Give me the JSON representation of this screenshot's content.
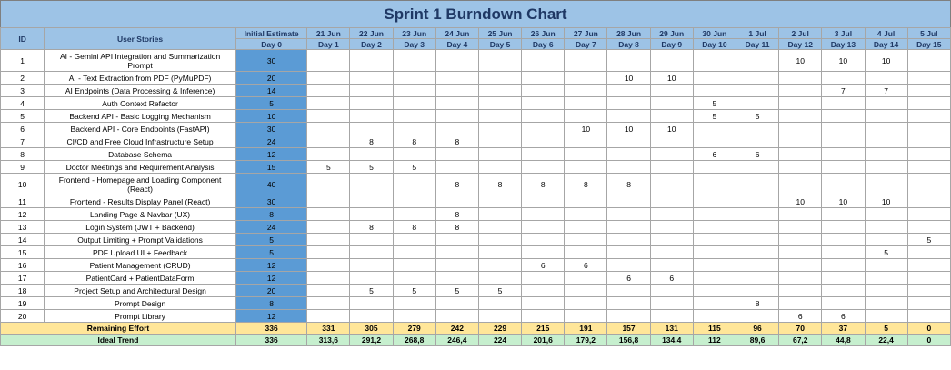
{
  "title": "Sprint 1 Burndown Chart",
  "headers": {
    "id": "ID",
    "stories": "User Stories",
    "estimate": "Initial Estimate",
    "day0": "Day 0"
  },
  "dates": [
    "21 Jun",
    "22 Jun",
    "23 Jun",
    "24 Jun",
    "25 Jun",
    "26 Jun",
    "27 Jun",
    "28 Jun",
    "29 Jun",
    "30 Jun",
    "1 Jul",
    "2 Jul",
    "3 Jul",
    "4 Jul",
    "5 Jul"
  ],
  "days": [
    "Day 1",
    "Day 2",
    "Day 3",
    "Day 4",
    "Day 5",
    "Day 6",
    "Day 7",
    "Day 8",
    "Day 9",
    "Day 10",
    "Day 11",
    "Day 12",
    "Day 13",
    "Day 14",
    "Day 15"
  ],
  "rows": [
    {
      "id": "1",
      "story": "AI - Gemini API Integration and Summarization Prompt",
      "est": "30",
      "cells": [
        "",
        "",
        "",
        "",
        "",
        "",
        "",
        "",
        "",
        "",
        "",
        "10",
        "10",
        "10",
        ""
      ]
    },
    {
      "id": "2",
      "story": "AI - Text Extraction from PDF (PyMuPDF)",
      "est": "20",
      "cells": [
        "",
        "",
        "",
        "",
        "",
        "",
        "",
        "10",
        "10",
        "",
        "",
        "",
        "",
        "",
        ""
      ]
    },
    {
      "id": "3",
      "story": "AI Endpoints (Data Processing & Inference)",
      "est": "14",
      "cells": [
        "",
        "",
        "",
        "",
        "",
        "",
        "",
        "",
        "",
        "",
        "",
        "",
        "7",
        "7",
        ""
      ]
    },
    {
      "id": "4",
      "story": "Auth Context Refactor",
      "est": "5",
      "cells": [
        "",
        "",
        "",
        "",
        "",
        "",
        "",
        "",
        "",
        "5",
        "",
        "",
        "",
        "",
        ""
      ]
    },
    {
      "id": "5",
      "story": "Backend API - Basic Logging Mechanism",
      "est": "10",
      "cells": [
        "",
        "",
        "",
        "",
        "",
        "",
        "",
        "",
        "",
        "5",
        "5",
        "",
        "",
        "",
        ""
      ]
    },
    {
      "id": "6",
      "story": "Backend API - Core Endpoints (FastAPI)",
      "est": "30",
      "cells": [
        "",
        "",
        "",
        "",
        "",
        "",
        "10",
        "10",
        "10",
        "",
        "",
        "",
        "",
        "",
        ""
      ]
    },
    {
      "id": "7",
      "story": "CI/CD and Free Cloud Infrastructure Setup",
      "est": "24",
      "cells": [
        "",
        "8",
        "8",
        "8",
        "",
        "",
        "",
        "",
        "",
        "",
        "",
        "",
        "",
        "",
        ""
      ]
    },
    {
      "id": "8",
      "story": "Database Schema",
      "est": "12",
      "cells": [
        "",
        "",
        "",
        "",
        "",
        "",
        "",
        "",
        "",
        "6",
        "6",
        "",
        "",
        "",
        ""
      ]
    },
    {
      "id": "9",
      "story": "Doctor Meetings and Requirement Analysis",
      "est": "15",
      "cells": [
        "5",
        "5",
        "5",
        "",
        "",
        "",
        "",
        "",
        "",
        "",
        "",
        "",
        "",
        "",
        ""
      ]
    },
    {
      "id": "10",
      "story": "Frontend - Homepage and Loading Component (React)",
      "est": "40",
      "cells": [
        "",
        "",
        "",
        "8",
        "8",
        "8",
        "8",
        "8",
        "",
        "",
        "",
        "",
        "",
        "",
        ""
      ]
    },
    {
      "id": "11",
      "story": "Frontend - Results Display Panel (React)",
      "est": "30",
      "cells": [
        "",
        "",
        "",
        "",
        "",
        "",
        "",
        "",
        "",
        "",
        "",
        "10",
        "10",
        "10",
        ""
      ]
    },
    {
      "id": "12",
      "story": "Landing Page & Navbar (UX)",
      "est": "8",
      "cells": [
        "",
        "",
        "",
        "8",
        "",
        "",
        "",
        "",
        "",
        "",
        "",
        "",
        "",
        "",
        ""
      ]
    },
    {
      "id": "13",
      "story": "Login System (JWT + Backend)",
      "est": "24",
      "cells": [
        "",
        "8",
        "8",
        "8",
        "",
        "",
        "",
        "",
        "",
        "",
        "",
        "",
        "",
        "",
        ""
      ]
    },
    {
      "id": "14",
      "story": "Output Limiting + Prompt Validations",
      "est": "5",
      "cells": [
        "",
        "",
        "",
        "",
        "",
        "",
        "",
        "",
        "",
        "",
        "",
        "",
        "",
        "",
        "5"
      ]
    },
    {
      "id": "15",
      "story": "PDF Upload UI + Feedback",
      "est": "5",
      "cells": [
        "",
        "",
        "",
        "",
        "",
        "",
        "",
        "",
        "",
        "",
        "",
        "",
        "",
        "5",
        ""
      ]
    },
    {
      "id": "16",
      "story": "Patient Management (CRUD)",
      "est": "12",
      "cells": [
        "",
        "",
        "",
        "",
        "",
        "6",
        "6",
        "",
        "",
        "",
        "",
        "",
        "",
        "",
        ""
      ]
    },
    {
      "id": "17",
      "story": "PatientCard + PatientDataForm",
      "est": "12",
      "cells": [
        "",
        "",
        "",
        "",
        "",
        "",
        "",
        "6",
        "6",
        "",
        "",
        "",
        "",
        "",
        ""
      ]
    },
    {
      "id": "18",
      "story": "Project Setup and Architectural Design",
      "est": "20",
      "cells": [
        "",
        "5",
        "5",
        "5",
        "5",
        "",
        "",
        "",
        "",
        "",
        "",
        "",
        "",
        "",
        ""
      ]
    },
    {
      "id": "19",
      "story": "Prompt Design",
      "est": "8",
      "cells": [
        "",
        "",
        "",
        "",
        "",
        "",
        "",
        "",
        "",
        "",
        "8",
        "",
        "",
        "",
        ""
      ]
    },
    {
      "id": "20",
      "story": "Prompt Library",
      "est": "12",
      "cells": [
        "",
        "",
        "",
        "",
        "",
        "",
        "",
        "",
        "",
        "",
        "",
        "6",
        "6",
        "",
        ""
      ]
    }
  ],
  "remaining": {
    "label": "Remaining Effort",
    "est": "336",
    "cells": [
      "331",
      "305",
      "279",
      "242",
      "229",
      "215",
      "191",
      "157",
      "131",
      "115",
      "96",
      "70",
      "37",
      "5",
      "0"
    ]
  },
  "ideal": {
    "label": "Ideal Trend",
    "est": "336",
    "cells": [
      "313,6",
      "291,2",
      "268,8",
      "246,4",
      "224",
      "201,6",
      "179,2",
      "156,8",
      "134,4",
      "112",
      "89,6",
      "67,2",
      "44,8",
      "22,4",
      "0"
    ]
  }
}
